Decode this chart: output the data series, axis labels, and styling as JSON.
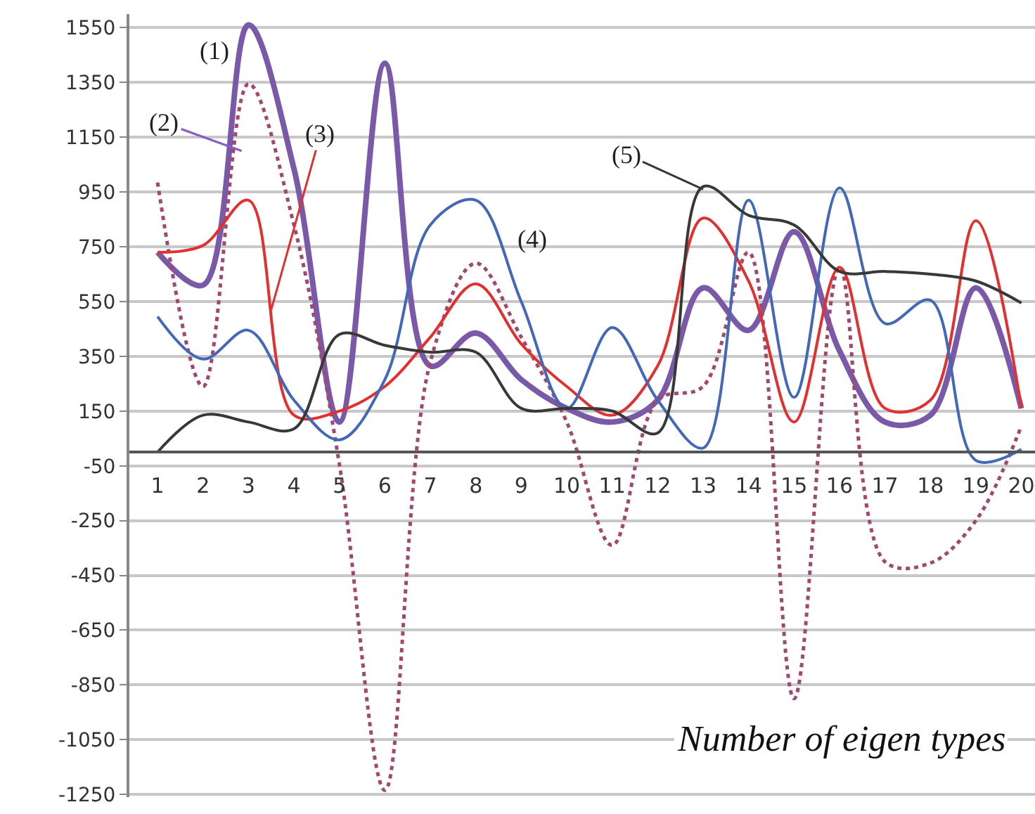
{
  "chart_data": {
    "type": "line",
    "xlabel": "Number of eigen types",
    "x": [
      1,
      2,
      3,
      4,
      5,
      6,
      7,
      8,
      9,
      10,
      11,
      12,
      13,
      14,
      15,
      16,
      17,
      18,
      19,
      20
    ],
    "xlim": [
      0.38,
      20.3
    ],
    "xticks": [
      1,
      2,
      3,
      4,
      5,
      6,
      7,
      8,
      9,
      10,
      11,
      12,
      13,
      14,
      15,
      16,
      17,
      18,
      19,
      20
    ],
    "ylim": [
      -1260,
      1600
    ],
    "yticks": [
      -1250,
      -1050,
      -850,
      -650,
      -450,
      -250,
      -50,
      150,
      350,
      550,
      750,
      950,
      1150,
      1350,
      1550
    ],
    "grid": "y",
    "marker": "none",
    "series": [
      {
        "color": "#7a5aa8",
        "line_style": "solid",
        "values": [
          730,
          610,
          1560,
          1035,
          110,
          1420,
          315,
          435,
          265,
          160,
          110,
          190,
          600,
          445,
          805,
          370,
          110,
          135,
          600,
          160
        ]
      },
      {
        "color": "#a04870",
        "line_style": "dotted",
        "values": [
          985,
          240,
          1345,
          830,
          -45,
          -1235,
          330,
          690,
          420,
          110,
          -340,
          190,
          240,
          730,
          -900,
          675,
          -400,
          -405,
          -250,
          95
        ]
      },
      {
        "color": "#e03030",
        "line_style": "solid",
        "values": [
          730,
          755,
          920,
          135,
          150,
          240,
          420,
          615,
          395,
          240,
          135,
          315,
          855,
          625,
          110,
          675,
          160,
          190,
          845,
          160
        ]
      },
      {
        "color": "#4468b8",
        "line_style": "solid",
        "values": [
          495,
          340,
          445,
          190,
          45,
          265,
          830,
          920,
          550,
          160,
          455,
          190,
          15,
          920,
          200,
          965,
          470,
          555,
          -30,
          10
        ]
      },
      {
        "color": "#383838",
        "line_style": "solid",
        "values": [
          0,
          135,
          110,
          85,
          430,
          390,
          365,
          365,
          160,
          160,
          150,
          70,
          970,
          865,
          830,
          660,
          660,
          650,
          625,
          545
        ]
      }
    ],
    "annotations": [
      "(1)",
      {
        "text": "(2)",
        "x": 2.85,
        "y": 1100
      },
      {
        "text": "(3)",
        "x": 3.5,
        "y": 520
      },
      "(4)",
      {
        "text": "(5)",
        "x": 13,
        "y": 960
      }
    ]
  }
}
